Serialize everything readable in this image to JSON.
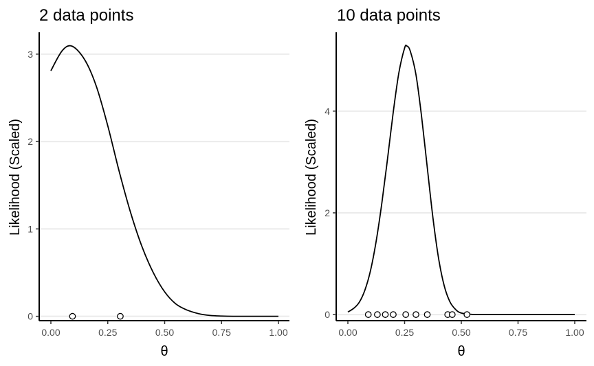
{
  "chart_data": [
    {
      "type": "line",
      "title": "2 data points",
      "xlabel": "θ",
      "ylabel": "Likelihood (Scaled)",
      "xlim": [
        0,
        1
      ],
      "ylim": [
        -0.05,
        3.25
      ],
      "xticks": [
        0,
        0.25,
        0.5,
        0.75,
        1
      ],
      "xtick_labels": [
        "0.00",
        "0.25",
        "0.50",
        "0.75",
        "1.00"
      ],
      "yticks": [
        0,
        1,
        2,
        3
      ],
      "ytick_labels": [
        "0",
        "1",
        "2",
        "3"
      ],
      "grid": "horizontal major",
      "curve": {
        "x": [
          0,
          0.05,
          0.094,
          0.15,
          0.2,
          0.25,
          0.3,
          0.35,
          0.4,
          0.45,
          0.5,
          0.55,
          0.6,
          0.65,
          0.7,
          0.75,
          0.8,
          0.9,
          1.0
        ],
        "y": [
          2.81,
          3.04,
          3.09,
          2.93,
          2.63,
          2.18,
          1.66,
          1.19,
          0.8,
          0.5,
          0.28,
          0.14,
          0.07,
          0.03,
          0.01,
          0.003,
          0.0,
          0.0,
          0.0
        ]
      },
      "points": {
        "x": [
          0.095,
          0.305
        ],
        "y": [
          0,
          0
        ]
      }
    },
    {
      "type": "line",
      "title": "10 data points",
      "xlabel": "θ",
      "ylabel": "Likelihood (Scaled)",
      "xlim": [
        0,
        1
      ],
      "ylim": [
        -0.12,
        5.55
      ],
      "xticks": [
        0,
        0.25,
        0.5,
        0.75,
        1
      ],
      "xtick_labels": [
        "0.00",
        "0.25",
        "0.50",
        "0.75",
        "1.00"
      ],
      "yticks": [
        0,
        2,
        4
      ],
      "ytick_labels": [
        "0",
        "2",
        "4"
      ],
      "grid": "horizontal major",
      "curve": {
        "x": [
          0,
          0.025,
          0.05,
          0.075,
          0.1,
          0.125,
          0.15,
          0.175,
          0.2,
          0.225,
          0.25,
          0.26,
          0.275,
          0.3,
          0.325,
          0.35,
          0.375,
          0.4,
          0.425,
          0.45,
          0.475,
          0.5,
          0.55,
          0.6,
          0.7,
          0.8,
          0.9,
          1.0
        ],
        "y": [
          0.05,
          0.12,
          0.24,
          0.48,
          0.87,
          1.45,
          2.2,
          3.07,
          3.98,
          4.76,
          5.24,
          5.28,
          5.18,
          4.72,
          3.89,
          2.89,
          1.9,
          1.1,
          0.56,
          0.25,
          0.1,
          0.03,
          0.003,
          0.0,
          0.0,
          0.0,
          0.0,
          0.0
        ]
      },
      "points": {
        "x": [
          0.09,
          0.13,
          0.165,
          0.2,
          0.255,
          0.3,
          0.35,
          0.44,
          0.46,
          0.525
        ],
        "y": [
          0,
          0,
          0,
          0,
          0,
          0,
          0,
          0,
          0,
          0
        ]
      }
    }
  ]
}
